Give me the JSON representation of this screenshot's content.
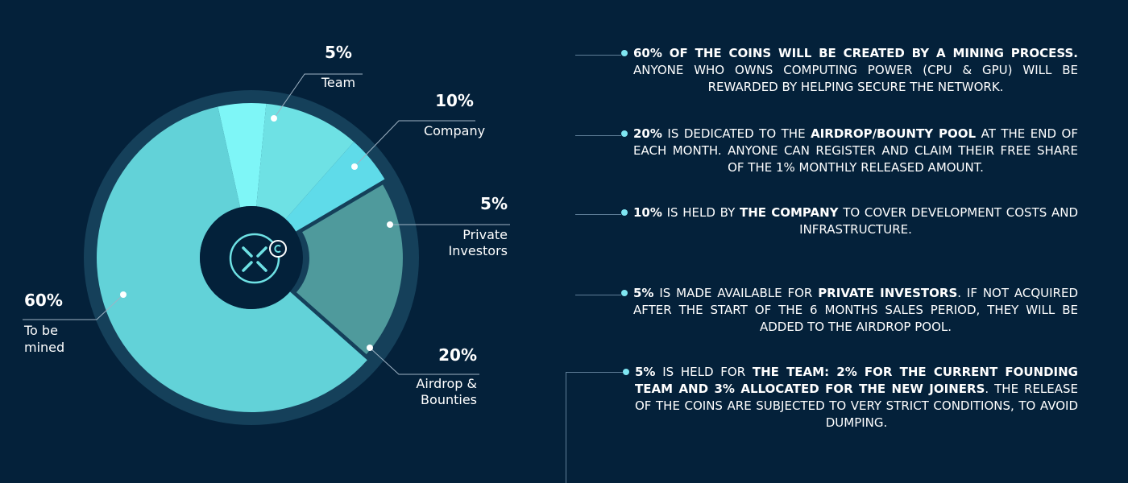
{
  "colors": {
    "background": "#04213a",
    "ring": "#15405a",
    "center": "#03213a",
    "connector": "#9fb3c4",
    "dot": "#7fe6f2"
  },
  "logo_icon": "x-coin-logo-icon",
  "chart_data": {
    "type": "pie",
    "title": "",
    "slices": [
      {
        "pct_label": "5%",
        "name": "Team",
        "value": 5,
        "color": "#7ef6f7",
        "exploded": false
      },
      {
        "pct_label": "10%",
        "name": "Company",
        "value": 10,
        "color": "#6ee1e4",
        "exploded": false
      },
      {
        "pct_label": "5%",
        "name": "Private Investors",
        "value": 5,
        "color": "#5fdbe9",
        "exploded": false
      },
      {
        "pct_label": "20%",
        "name": "Airdrop & Bounties",
        "value": 20,
        "color": "#4f9a9c",
        "exploded": true
      },
      {
        "pct_label": "60%",
        "name": "To be mined",
        "value": 60,
        "color": "#62d2d8",
        "exploded": false
      }
    ],
    "legend": "none",
    "grid": false
  },
  "notes": [
    {
      "parts": [
        {
          "t": "60% OF THE COINS WILL BE CREATED BY A MINING PROCESS.",
          "b": true
        },
        {
          "t": " ANYONE WHO OWNS COMPUTING POWER (CPU & GPU) WILL BE REWARDED BY HELPING SECURE THE NETWORK.",
          "b": false
        }
      ]
    },
    {
      "parts": [
        {
          "t": "20%",
          "b": true
        },
        {
          "t": " IS DEDICATED TO THE ",
          "b": false
        },
        {
          "t": "AIRDROP/BOUNTY POOL",
          "b": true
        },
        {
          "t": " AT THE END OF EACH MONTH. ANYONE CAN REGISTER AND CLAIM THEIR FREE SHARE OF THE 1% MONTHLY RELEASED AMOUNT.",
          "b": false
        }
      ]
    },
    {
      "parts": [
        {
          "t": "10%",
          "b": true
        },
        {
          "t": " IS HELD BY ",
          "b": false
        },
        {
          "t": "THE COMPANY",
          "b": true
        },
        {
          "t": " TO COVER DEVELOPMENT COSTS AND INFRASTRUCTURE.",
          "b": false
        }
      ]
    },
    {
      "parts": [
        {
          "t": "5%",
          "b": true
        },
        {
          "t": " IS MADE AVAILABLE FOR ",
          "b": false
        },
        {
          "t": "PRIVATE INVESTORS",
          "b": true
        },
        {
          "t": ". IF NOT ACQUIRED AFTER THE START OF THE 6 MONTHS SALES PERIOD, THEY WILL BE ADDED TO THE AIRDROP POOL.",
          "b": false
        }
      ]
    },
    {
      "parts": [
        {
          "t": "5%",
          "b": true
        },
        {
          "t": " IS HELD FOR ",
          "b": false
        },
        {
          "t": "THE TEAM: 2% FOR THE CURRENT FOUNDING TEAM AND 3% ALLOCATED FOR THE NEW JOINERS",
          "b": true
        },
        {
          "t": ". THE RELEASE OF THE COINS ARE SUBJECTED TO VERY STRICT CONDITIONS, TO AVOID DUMPING.",
          "b": false
        }
      ]
    }
  ]
}
